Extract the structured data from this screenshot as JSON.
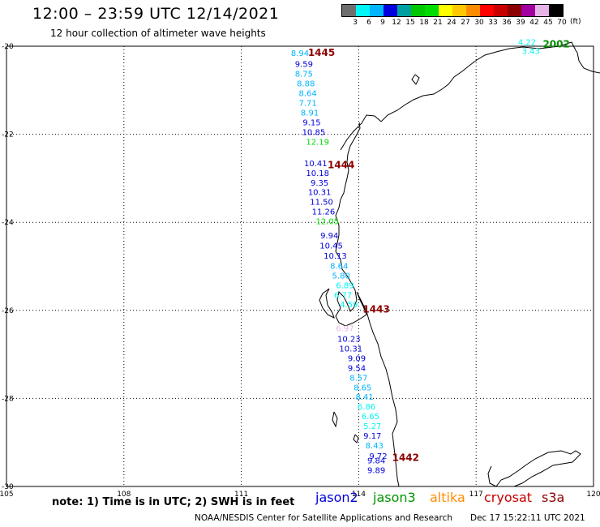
{
  "header": {
    "title": "12:00 – 23:59 UTC 12/14/2021",
    "subtitle": "12 hour collection of altimeter wave heights"
  },
  "legend": {
    "ticks": [
      "3",
      "6",
      "9",
      "12",
      "15",
      "18",
      "21",
      "24",
      "27",
      "30",
      "33",
      "36",
      "39",
      "42",
      "45",
      "70"
    ],
    "unit": "(ft)",
    "colors": [
      "#6e6e6e",
      "#00f5f5",
      "#00b4ff",
      "#0000dc",
      "#00a0a0",
      "#00c800",
      "#00dc00",
      "#ffff00",
      "#ffc800",
      "#ff8c00",
      "#ff0000",
      "#c80000",
      "#8c0000",
      "#a000a0",
      "#e6b4e6",
      "#000000"
    ]
  },
  "chart_data": {
    "type": "scatter",
    "xlim": [
      105,
      120
    ],
    "ylim": [
      -30,
      -20
    ],
    "xticks": [
      "105",
      "108",
      "111",
      "114",
      "117",
      "120"
    ],
    "yticks": [
      "-20",
      "-22",
      "-24",
      "-26",
      "-28",
      "-30"
    ],
    "grid": true,
    "points": [
      {
        "lon": 112.5,
        "lat": -20.15,
        "label": "8.94",
        "color": "#00b4ff"
      },
      {
        "lon": 112.6,
        "lat": -20.4,
        "label": "9.59",
        "color": "#0000dc"
      },
      {
        "lon": 112.6,
        "lat": -20.62,
        "label": "8.75",
        "color": "#00b4ff"
      },
      {
        "lon": 112.65,
        "lat": -20.84,
        "label": "8.88",
        "color": "#00b4ff"
      },
      {
        "lon": 112.7,
        "lat": -21.06,
        "label": "8.64",
        "color": "#00b4ff"
      },
      {
        "lon": 112.7,
        "lat": -21.28,
        "label": "7.71",
        "color": "#00b4ff"
      },
      {
        "lon": 112.75,
        "lat": -21.5,
        "label": "8.91",
        "color": "#00b4ff"
      },
      {
        "lon": 112.8,
        "lat": -21.72,
        "label": "9.15",
        "color": "#0000dc"
      },
      {
        "lon": 112.85,
        "lat": -21.94,
        "label": "10.85",
        "color": "#0000dc"
      },
      {
        "lon": 112.95,
        "lat": -22.16,
        "label": "12.19",
        "color": "#00dc00"
      },
      {
        "lon": 112.9,
        "lat": -22.65,
        "label": "10.41",
        "color": "#0000dc"
      },
      {
        "lon": 112.95,
        "lat": -22.87,
        "label": "10.18",
        "color": "#0000dc"
      },
      {
        "lon": 113.0,
        "lat": -23.09,
        "label": "9.35",
        "color": "#0000dc"
      },
      {
        "lon": 113.0,
        "lat": -23.31,
        "label": "10.31",
        "color": "#0000dc"
      },
      {
        "lon": 113.05,
        "lat": -23.53,
        "label": "11.50",
        "color": "#0000dc"
      },
      {
        "lon": 113.1,
        "lat": -23.75,
        "label": "11.26",
        "color": "#0000dc"
      },
      {
        "lon": 113.2,
        "lat": -23.97,
        "label": "12.05",
        "color": "#00dc00"
      },
      {
        "lon": 113.25,
        "lat": -24.29,
        "label": "9.94",
        "color": "#0000dc"
      },
      {
        "lon": 113.3,
        "lat": -24.52,
        "label": "10.45",
        "color": "#0000dc"
      },
      {
        "lon": 113.4,
        "lat": -24.75,
        "label": "10.13",
        "color": "#0000dc"
      },
      {
        "lon": 113.5,
        "lat": -24.98,
        "label": "8.64",
        "color": "#00b4ff"
      },
      {
        "lon": 113.55,
        "lat": -25.2,
        "label": "5.80",
        "color": "#00b4ff"
      },
      {
        "lon": 113.65,
        "lat": -25.42,
        "label": "6.89",
        "color": "#00f5f5"
      },
      {
        "lon": 113.6,
        "lat": -25.64,
        "label": "6.77",
        "color": "#00f5f5"
      },
      {
        "lon": 113.75,
        "lat": -25.86,
        "label": "4.59",
        "color": "#00f5f5"
      },
      {
        "lon": 113.65,
        "lat": -26.4,
        "label": "6.97",
        "color": "#e6b4e6"
      },
      {
        "lon": 113.75,
        "lat": -26.64,
        "label": "10.23",
        "color": "#0000dc"
      },
      {
        "lon": 113.8,
        "lat": -26.86,
        "label": "10.31",
        "color": "#0000dc"
      },
      {
        "lon": 113.95,
        "lat": -27.08,
        "label": "9.09",
        "color": "#0000dc"
      },
      {
        "lon": 113.95,
        "lat": -27.3,
        "label": "9.54",
        "color": "#0000dc"
      },
      {
        "lon": 114.0,
        "lat": -27.52,
        "label": "8.57",
        "color": "#00b4ff"
      },
      {
        "lon": 114.1,
        "lat": -27.74,
        "label": "8.65",
        "color": "#00b4ff"
      },
      {
        "lon": 114.15,
        "lat": -27.96,
        "label": "8.41",
        "color": "#00b4ff"
      },
      {
        "lon": 114.2,
        "lat": -28.18,
        "label": "6.86",
        "color": "#00f5f5"
      },
      {
        "lon": 114.3,
        "lat": -28.4,
        "label": "6.65",
        "color": "#00f5f5"
      },
      {
        "lon": 114.35,
        "lat": -28.62,
        "label": "5.27",
        "color": "#00f5f5"
      },
      {
        "lon": 114.35,
        "lat": -28.84,
        "label": "9.17",
        "color": "#0000dc"
      },
      {
        "lon": 114.4,
        "lat": -29.06,
        "label": "8.43",
        "color": "#00b4ff"
      },
      {
        "lon": 114.5,
        "lat": -29.3,
        "label": "9.72",
        "color": "#0000dc"
      },
      {
        "lon": 114.45,
        "lat": -29.4,
        "label": "9.84",
        "color": "#0000dc"
      },
      {
        "lon": 114.45,
        "lat": -29.62,
        "label": "9.89",
        "color": "#0000dc"
      },
      {
        "lon": 118.3,
        "lat": -19.9,
        "label": "4.22",
        "color": "#00f5f5"
      },
      {
        "lon": 118.4,
        "lat": -20.1,
        "label": "3.43",
        "color": "#00f5f5"
      }
    ],
    "pass_labels": [
      {
        "lon": 113.05,
        "lat": -20.15,
        "label": "1445",
        "color": "#8c0000"
      },
      {
        "lon": 113.55,
        "lat": -22.7,
        "label": "1444",
        "color": "#8c0000"
      },
      {
        "lon": 114.45,
        "lat": -25.98,
        "label": "1443",
        "color": "#8c0000"
      },
      {
        "lon": 115.2,
        "lat": -29.35,
        "label": "1442",
        "color": "#8c0000"
      },
      {
        "lon": 119.05,
        "lat": -19.95,
        "label": "2002",
        "color": "#008c00"
      }
    ]
  },
  "note": "note: 1) Time is in UTC; 2) SWH is in feet",
  "satellites": [
    {
      "name": "jason2",
      "color": "#0000dc"
    },
    {
      "name": "jason3",
      "color": "#009600"
    },
    {
      "name": "altika",
      "color": "#ff8c00"
    },
    {
      "name": "cryosat",
      "color": "#c80000"
    },
    {
      "name": "s3a",
      "color": "#8c0000"
    }
  ],
  "footer": {
    "credit": "NOAA/NESDIS Center for Satellite Applications and Research",
    "date": "Dec 17 15:22:11 UTC 2021"
  }
}
